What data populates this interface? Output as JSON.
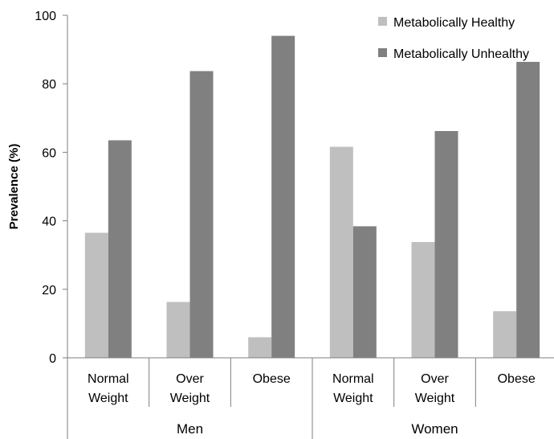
{
  "chart_data": {
    "type": "bar",
    "title": "",
    "xlabel": "",
    "ylabel": "Prevalence (%)",
    "ylim": [
      0,
      100
    ],
    "yticks": [
      0,
      20,
      40,
      60,
      80,
      100
    ],
    "grid": false,
    "legend_position": "top-right",
    "groups": [
      {
        "label": "Men",
        "categories": [
          [
            "Normal",
            "Weight"
          ],
          [
            "Over",
            "Weight"
          ],
          [
            "Obese"
          ]
        ]
      },
      {
        "label": "Women",
        "categories": [
          [
            "Normal",
            "Weight"
          ],
          [
            "Over",
            "Weight"
          ],
          [
            "Obese"
          ]
        ]
      }
    ],
    "series": [
      {
        "name": "Metabolically Healthy",
        "color": "#bfbfbf",
        "values": [
          36.5,
          16.3,
          6.0,
          61.6,
          33.8,
          13.6
        ]
      },
      {
        "name": "Metabolically Unhealthy",
        "color": "#808080",
        "values": [
          63.5,
          83.7,
          94.0,
          38.4,
          66.2,
          86.4
        ]
      }
    ]
  }
}
